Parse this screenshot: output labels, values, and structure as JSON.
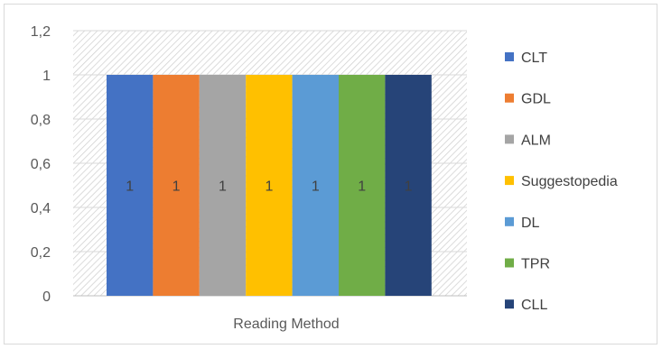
{
  "chart_data": {
    "type": "bar",
    "categories": [
      "Reading Method"
    ],
    "series": [
      {
        "name": "CLT",
        "values": [
          1
        ],
        "color": "#4472C4"
      },
      {
        "name": "GDL",
        "values": [
          1
        ],
        "color": "#ED7D31"
      },
      {
        "name": "ALM",
        "values": [
          1
        ],
        "color": "#A5A5A5"
      },
      {
        "name": "Suggestopedia",
        "values": [
          1
        ],
        "color": "#FFC000"
      },
      {
        "name": "DL",
        "values": [
          1
        ],
        "color": "#5B9BD5"
      },
      {
        "name": "TPR",
        "values": [
          1
        ],
        "color": "#70AD47"
      },
      {
        "name": "CLL",
        "values": [
          1
        ],
        "color": "#264478"
      }
    ],
    "data_labels": [
      "1",
      "1",
      "1",
      "1",
      "1",
      "1",
      "1"
    ],
    "y_ticks": [
      "0",
      "0,2",
      "0,4",
      "0,6",
      "0,8",
      "1",
      "1,2"
    ],
    "ylim": [
      0,
      1.2
    ],
    "grid": true,
    "legend": "right",
    "plot_area_pattern": "diagonal-hatch"
  }
}
